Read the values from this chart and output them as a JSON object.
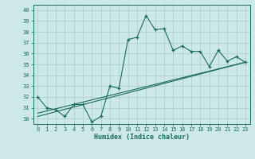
{
  "title": "",
  "xlabel": "Humidex (Indice chaleur)",
  "bg_color": "#cce8e8",
  "line_color": "#1a6b5a",
  "grid_color": "#aacccc",
  "xlim": [
    -0.5,
    23.5
  ],
  "ylim": [
    29.5,
    40.5
  ],
  "xticks": [
    0,
    1,
    2,
    3,
    4,
    5,
    6,
    7,
    8,
    9,
    10,
    11,
    12,
    13,
    14,
    15,
    16,
    17,
    18,
    19,
    20,
    21,
    22,
    23
  ],
  "yticks": [
    30,
    31,
    32,
    33,
    34,
    35,
    36,
    37,
    38,
    39,
    40
  ],
  "series1_x": [
    0,
    1,
    2,
    3,
    4,
    5,
    6,
    7,
    8,
    9,
    10,
    11,
    12,
    13,
    14,
    15,
    16,
    17,
    18,
    19,
    20,
    21,
    22,
    23
  ],
  "series1_y": [
    32.0,
    31.0,
    30.8,
    30.2,
    31.3,
    31.3,
    29.7,
    30.2,
    33.0,
    32.8,
    37.3,
    37.5,
    39.5,
    38.2,
    38.3,
    36.3,
    36.7,
    36.2,
    36.2,
    34.8,
    36.3,
    35.3,
    35.7,
    35.2
  ],
  "series2_x": [
    0,
    23
  ],
  "series2_y": [
    30.5,
    35.2
  ],
  "series3_x": [
    0,
    23
  ],
  "series3_y": [
    30.2,
    35.2
  ],
  "xlabel_fontsize": 6.0,
  "tick_fontsize": 5.0
}
